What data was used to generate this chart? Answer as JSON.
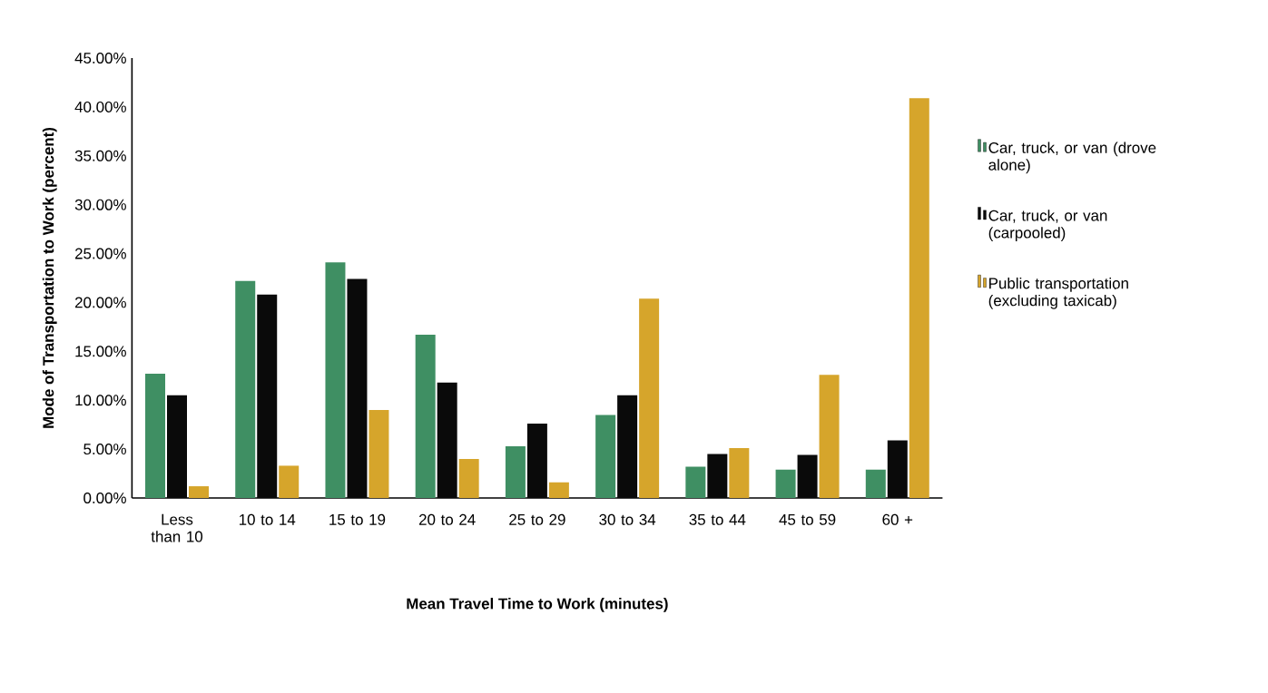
{
  "chart_data": {
    "type": "bar",
    "xlabel": "Mean Travel Time to Work (minutes)",
    "ylabel": "Mode of Transportation to Work (percent)",
    "categories": [
      "Less than 10",
      "10 to 14",
      "15 to 19",
      "20 to 24",
      "25 to 29",
      "30 to 34",
      "35 to 44",
      "45 to 59",
      "60 +"
    ],
    "series": [
      {
        "name": "Car, truck, or van (drove alone)",
        "color": "#3f8f63",
        "values": [
          12.7,
          22.2,
          24.1,
          16.7,
          5.3,
          8.5,
          3.2,
          2.9,
          2.9
        ]
      },
      {
        "name": "Car, truck, or van (carpooled)",
        "color": "#0a0a0a",
        "values": [
          10.5,
          20.8,
          22.4,
          11.8,
          7.6,
          10.5,
          4.5,
          4.4,
          5.9
        ]
      },
      {
        "name": "Public transportation (excluding taxicab)",
        "color": "#d6a52b",
        "values": [
          1.2,
          3.3,
          9.0,
          4.0,
          1.6,
          20.4,
          5.1,
          12.6,
          40.9
        ]
      }
    ],
    "ylim": [
      0,
      45
    ],
    "yticks": [
      {
        "value": 0,
        "label": "0.00%"
      },
      {
        "value": 5,
        "label": "5.00%"
      },
      {
        "value": 10,
        "label": "10.00%"
      },
      {
        "value": 15,
        "label": "15.00%"
      },
      {
        "value": 20,
        "label": "20.00%"
      },
      {
        "value": 25,
        "label": "25.00%"
      },
      {
        "value": 30,
        "label": "30.00%"
      },
      {
        "value": 35,
        "label": "35.00%"
      },
      {
        "value": 40,
        "label": "40.00%"
      },
      {
        "value": 45,
        "label": "45.00%"
      }
    ],
    "legend": "right"
  }
}
